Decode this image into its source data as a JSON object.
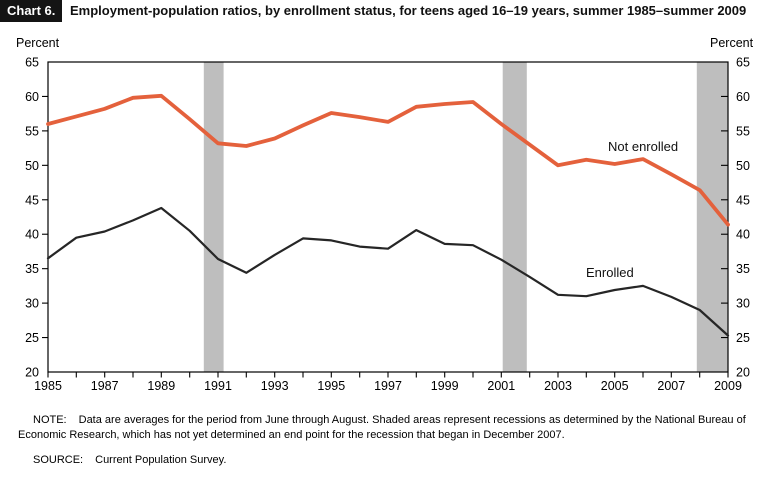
{
  "header": {
    "chart_number": "Chart 6.",
    "title": "Employment-population ratios, by enrollment status, for teens aged 16–19 years, summer 1985–summer 2009"
  },
  "axis": {
    "left_unit": "Percent",
    "right_unit": "Percent"
  },
  "chart_data": {
    "type": "line",
    "title": "Employment-population ratios, by enrollment status, for teens aged 16-19 years, summer 1985-summer 2009",
    "xlabel": "",
    "ylabel": "Percent",
    "ylim": [
      20,
      65
    ],
    "y_tick_step": 5,
    "grid": false,
    "legend_position": "inline annotations on lines",
    "x": [
      1985,
      1986,
      1987,
      1988,
      1989,
      1990,
      1991,
      1992,
      1993,
      1994,
      1995,
      1996,
      1997,
      1998,
      1999,
      2000,
      2001,
      2002,
      2003,
      2004,
      2005,
      2006,
      2007,
      2008,
      2009
    ],
    "x_labeled_years": [
      1985,
      1987,
      1989,
      1991,
      1993,
      1995,
      1997,
      1999,
      2001,
      2003,
      2005,
      2007,
      2009
    ],
    "series": [
      {
        "name": "Not enrolled",
        "color": "#E4613C",
        "line_width": 3.8,
        "values": [
          56.0,
          57.1,
          58.2,
          59.8,
          60.1,
          56.7,
          53.2,
          52.8,
          53.9,
          55.8,
          57.6,
          57.0,
          56.3,
          58.5,
          58.9,
          59.2,
          56.0,
          53.0,
          50.0,
          50.8,
          50.2,
          50.9,
          48.7,
          46.4,
          41.4
        ]
      },
      {
        "name": "Enrolled",
        "color": "#262626",
        "line_width": 2.2,
        "values": [
          36.5,
          39.5,
          40.4,
          42.0,
          43.8,
          40.5,
          36.4,
          34.4,
          37.0,
          39.4,
          39.1,
          38.2,
          37.9,
          40.6,
          38.6,
          38.4,
          36.3,
          33.8,
          31.2,
          31.0,
          31.9,
          32.5,
          30.9,
          29.0,
          25.3
        ]
      }
    ],
    "recession_bands": [
      [
        1990.5,
        1991.2
      ],
      [
        2001.05,
        2001.9
      ],
      [
        2007.9,
        2009.0
      ]
    ],
    "band_color": "#BEBEBE"
  },
  "footnotes": {
    "note_label": "NOTE:",
    "note_text": "Data are averages for the period from June through August. Shaded areas represent recessions as determined by the National Bureau of Economic Research, which has not yet determined an end point for the recession that began in December 2007.",
    "source_label": "SOURCE:",
    "source_text": "Current Population Survey."
  }
}
